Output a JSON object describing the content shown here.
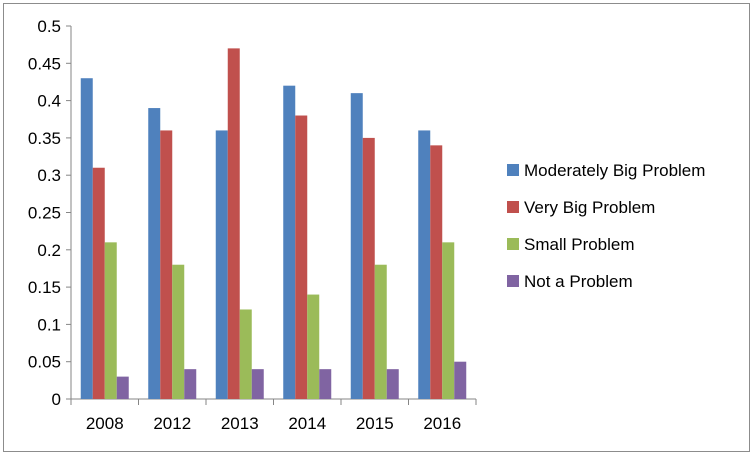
{
  "chart_data": {
    "type": "bar",
    "categories": [
      "2008",
      "2012",
      "2013",
      "2014",
      "2015",
      "2016"
    ],
    "series": [
      {
        "name": "Moderately Big Problem",
        "color": "#4f81bd",
        "values": [
          0.43,
          0.39,
          0.36,
          0.42,
          0.41,
          0.36
        ]
      },
      {
        "name": "Very Big Problem",
        "color": "#c0504d",
        "values": [
          0.31,
          0.36,
          0.47,
          0.38,
          0.35,
          0.34
        ]
      },
      {
        "name": "Small Problem",
        "color": "#9bbb59",
        "values": [
          0.21,
          0.18,
          0.12,
          0.14,
          0.18,
          0.21
        ]
      },
      {
        "name": "Not a Problem",
        "color": "#8064a2",
        "values": [
          0.03,
          0.04,
          0.04,
          0.04,
          0.04,
          0.05
        ]
      }
    ],
    "ylim": [
      0,
      0.5
    ],
    "yticks": [
      "0",
      "0.05",
      "0.1",
      "0.15",
      "0.2",
      "0.25",
      "0.3",
      "0.35",
      "0.4",
      "0.45",
      "0.5"
    ],
    "title": "",
    "xlabel": "",
    "ylabel": "",
    "grid": false,
    "legend_position": "right"
  }
}
